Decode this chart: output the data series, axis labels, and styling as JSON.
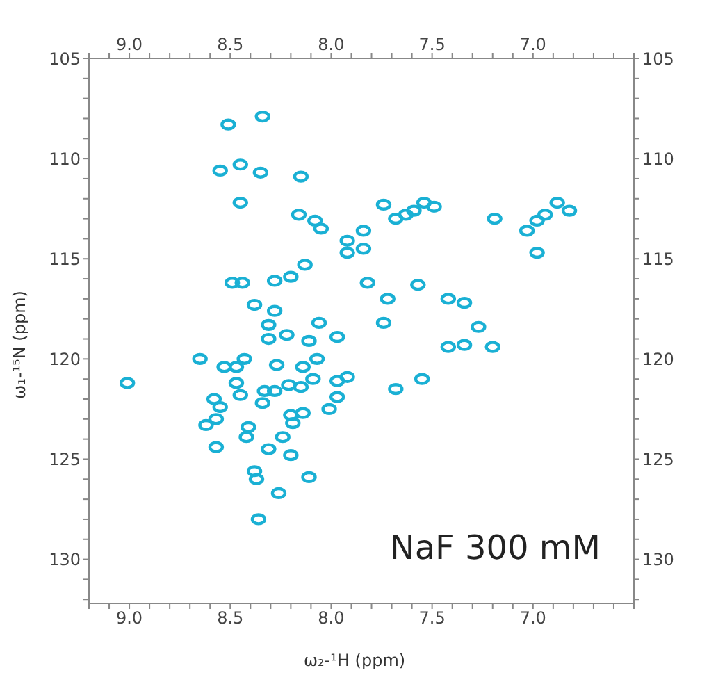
{
  "chart_data": {
    "type": "scatter",
    "xlabel": "ω₂-¹H  (ppm)",
    "ylabel": "ω₁-¹⁵N (ppm)",
    "annotations": [
      "NaF 300 mM"
    ],
    "marker": "circle",
    "color": "#1ab0d4",
    "x": [
      8.51,
      8.34,
      8.45,
      8.55,
      8.35,
      8.15,
      8.45,
      8.16,
      8.08,
      8.05,
      7.84,
      7.92,
      7.84,
      7.92,
      8.13,
      7.82,
      8.49,
      8.44,
      8.28,
      8.2,
      8.38,
      8.28,
      8.06,
      8.31,
      8.31,
      8.22,
      8.11,
      7.97,
      8.65,
      9.01,
      8.43,
      8.53,
      8.47,
      8.27,
      8.14,
      8.07,
      7.97,
      7.92,
      8.09,
      8.47,
      8.45,
      8.33,
      8.28,
      8.21,
      8.15,
      8.58,
      8.55,
      8.34,
      7.97,
      8.01,
      8.2,
      8.14,
      8.19,
      8.57,
      8.62,
      8.41,
      8.42,
      8.24,
      8.57,
      8.31,
      8.2,
      8.38,
      8.37,
      8.11,
      8.26,
      8.36,
      7.74,
      7.68,
      7.63,
      7.59,
      7.54,
      7.49,
      7.19,
      7.03,
      6.98,
      6.94,
      6.88,
      6.82,
      6.98,
      7.57,
      7.72,
      7.42,
      7.34,
      7.74,
      7.27,
      7.42,
      7.34,
      7.2,
      7.55,
      7.68
    ],
    "values": [
      108.3,
      107.9,
      110.3,
      110.6,
      110.7,
      110.9,
      112.2,
      112.8,
      113.1,
      113.5,
      113.6,
      114.1,
      114.5,
      114.7,
      115.3,
      116.2,
      116.2,
      116.2,
      116.1,
      115.9,
      117.3,
      117.6,
      118.2,
      118.3,
      119.0,
      118.8,
      119.1,
      118.9,
      120.0,
      121.2,
      120.0,
      120.4,
      120.4,
      120.3,
      120.4,
      120.0,
      121.1,
      120.9,
      121.0,
      121.2,
      121.8,
      121.6,
      121.6,
      121.3,
      121.4,
      122.0,
      122.4,
      122.2,
      121.9,
      122.5,
      122.8,
      122.7,
      123.2,
      123.0,
      123.3,
      123.4,
      123.9,
      123.9,
      124.4,
      124.5,
      124.8,
      125.6,
      126.0,
      125.9,
      126.7,
      128.0,
      112.3,
      113.0,
      112.8,
      112.6,
      112.2,
      112.4,
      113.0,
      113.6,
      113.1,
      112.8,
      112.2,
      112.6,
      114.7,
      116.3,
      117.0,
      117.0,
      117.2,
      118.2,
      118.4,
      119.4,
      119.3,
      119.4,
      121.0,
      121.5
    ],
    "xlim": [
      9.2,
      6.5
    ],
    "xticks": [
      {
        "value": 9.2,
        "label": null
      },
      {
        "value": 9.1,
        "label": null
      },
      {
        "value": 9.0,
        "label": "9.0"
      },
      {
        "value": 8.9,
        "label": null
      },
      {
        "value": 8.8,
        "label": null
      },
      {
        "value": 8.7,
        "label": null
      },
      {
        "value": 8.6,
        "label": null
      },
      {
        "value": 8.5,
        "label": "8.5"
      },
      {
        "value": 8.4,
        "label": null
      },
      {
        "value": 8.3,
        "label": null
      },
      {
        "value": 8.2,
        "label": null
      },
      {
        "value": 8.1,
        "label": null
      },
      {
        "value": 8.0,
        "label": "8.0"
      },
      {
        "value": 7.9,
        "label": null
      },
      {
        "value": 7.8,
        "label": null
      },
      {
        "value": 7.7,
        "label": null
      },
      {
        "value": 7.6,
        "label": null
      },
      {
        "value": 7.5,
        "label": "7.5"
      },
      {
        "value": 7.4,
        "label": null
      },
      {
        "value": 7.3,
        "label": null
      },
      {
        "value": 7.2,
        "label": null
      },
      {
        "value": 7.1,
        "label": null
      },
      {
        "value": 7.0,
        "label": "7.0"
      },
      {
        "value": 6.9,
        "label": null
      },
      {
        "value": 6.8,
        "label": null
      },
      {
        "value": 6.7,
        "label": null
      },
      {
        "value": 6.6,
        "label": null
      },
      {
        "value": 6.5,
        "label": null
      }
    ],
    "x2lim": [
      9.2,
      6.5
    ],
    "x2ticks": [
      {
        "value": 9.2,
        "label": null
      },
      {
        "value": 9.1,
        "label": null
      },
      {
        "value": 9.0,
        "label": "9.0"
      },
      {
        "value": 8.9,
        "label": null
      },
      {
        "value": 8.8,
        "label": null
      },
      {
        "value": 8.7,
        "label": null
      },
      {
        "value": 8.6,
        "label": null
      },
      {
        "value": 8.5,
        "label": "8.5"
      },
      {
        "value": 8.4,
        "label": null
      },
      {
        "value": 8.3,
        "label": null
      },
      {
        "value": 8.2,
        "label": null
      },
      {
        "value": 8.1,
        "label": null
      },
      {
        "value": 8.0,
        "label": "8.0"
      },
      {
        "value": 7.9,
        "label": null
      },
      {
        "value": 7.8,
        "label": null
      },
      {
        "value": 7.7,
        "label": null
      },
      {
        "value": 7.6,
        "label": null
      },
      {
        "value": 7.5,
        "label": "7.5"
      },
      {
        "value": 7.4,
        "label": null
      },
      {
        "value": 7.3,
        "label": null
      },
      {
        "value": 7.2,
        "label": null
      },
      {
        "value": 7.1,
        "label": null
      },
      {
        "value": 7.0,
        "label": "7.0"
      },
      {
        "value": 6.9,
        "label": null
      },
      {
        "value": 6.8,
        "label": null
      },
      {
        "value": 6.7,
        "label": null
      },
      {
        "value": 6.6,
        "label": null
      },
      {
        "value": 6.5,
        "label": null
      }
    ],
    "ylim": [
      132.2,
      105
    ],
    "yticks": [
      105,
      {
        "value": 106,
        "label": null
      },
      {
        "value": 107,
        "label": null
      },
      {
        "value": 108,
        "label": null
      },
      {
        "value": 109,
        "label": null
      },
      110,
      {
        "value": 111,
        "label": null
      },
      {
        "value": 112,
        "label": null
      },
      {
        "value": 113,
        "label": null
      },
      {
        "value": 114,
        "label": null
      },
      115,
      {
        "value": 116,
        "label": null
      },
      {
        "value": 117,
        "label": null
      },
      {
        "value": 118,
        "label": null
      },
      {
        "value": 119,
        "label": null
      },
      120,
      {
        "value": 121,
        "label": null
      },
      {
        "value": 122,
        "label": null
      },
      {
        "value": 123,
        "label": null
      },
      {
        "value": 124,
        "label": null
      },
      125,
      {
        "value": 126,
        "label": null
      },
      {
        "value": 127,
        "label": null
      },
      {
        "value": 128,
        "label": null
      },
      {
        "value": 129,
        "label": null
      },
      130,
      {
        "value": 131,
        "label": null
      },
      {
        "value": 132,
        "label": null
      }
    ],
    "y2lim": [
      132.2,
      105
    ],
    "y2ticks": [
      105,
      {
        "value": 106,
        "label": null
      },
      {
        "value": 107,
        "label": null
      },
      {
        "value": 108,
        "label": null
      },
      {
        "value": 109,
        "label": null
      },
      110,
      {
        "value": 111,
        "label": null
      },
      {
        "value": 112,
        "label": null
      },
      {
        "value": 113,
        "label": null
      },
      {
        "value": 114,
        "label": null
      },
      115,
      {
        "value": 116,
        "label": null
      },
      {
        "value": 117,
        "label": null
      },
      {
        "value": 118,
        "label": null
      },
      {
        "value": 119,
        "label": null
      },
      120,
      {
        "value": 121,
        "label": null
      },
      {
        "value": 122,
        "label": null
      },
      {
        "value": 123,
        "label": null
      },
      {
        "value": 124,
        "label": null
      },
      125,
      {
        "value": 126,
        "label": null
      },
      {
        "value": 127,
        "label": null
      },
      {
        "value": 128,
        "label": null
      },
      {
        "value": 129,
        "label": null
      },
      130,
      {
        "value": 131,
        "label": null
      },
      {
        "value": 132,
        "label": null
      }
    ]
  }
}
